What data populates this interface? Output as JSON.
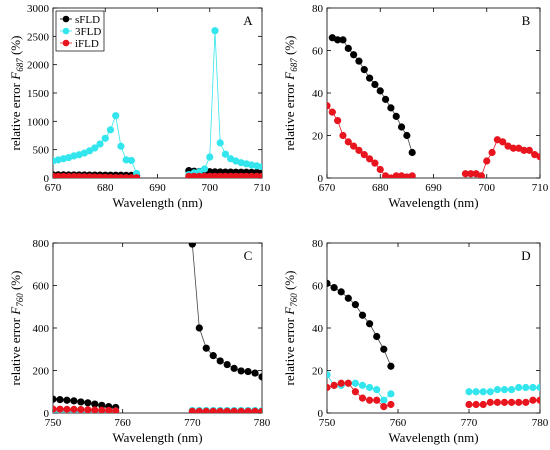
{
  "colors": {
    "sFLD": "#000000",
    "3FLD": "#33e6ee",
    "iFLD": "#e8141e"
  },
  "legend": [
    "sFLD",
    "3FLD",
    "iFLD"
  ],
  "chart_data": [
    {
      "type": "line",
      "panel": "A",
      "xlabel": "Wavelength (nm)",
      "ylabel_main": "relative error ",
      "ylabel_sym": "F",
      "ylabel_sub": "687",
      "ylabel_unit": " (%)",
      "xlim": [
        670,
        710
      ],
      "ylim": [
        0,
        3000
      ],
      "xticks": [
        670,
        680,
        690,
        700,
        710
      ],
      "yticks": [
        0,
        500,
        1000,
        1500,
        2000,
        2500,
        3000
      ],
      "legend_placement": "top-left",
      "series": [
        {
          "name": "sFLD",
          "x": [
            670,
            671,
            672,
            673,
            674,
            675,
            676,
            677,
            678,
            679,
            680,
            681,
            682,
            683,
            684,
            685,
            686
          ],
          "y": [
            55,
            55,
            55,
            54,
            54,
            53,
            53,
            52,
            52,
            51,
            50,
            50,
            49,
            48,
            47,
            46,
            45
          ]
        },
        {
          "name": "3FLD",
          "x": [
            670,
            671,
            672,
            673,
            674,
            675,
            676,
            677,
            678,
            679,
            680,
            681,
            682,
            683,
            684,
            685,
            686
          ],
          "y": [
            300,
            320,
            340,
            360,
            390,
            410,
            440,
            480,
            530,
            600,
            700,
            850,
            1100,
            560,
            320,
            310,
            80
          ]
        },
        {
          "name": "iFLD",
          "x": [
            670,
            671,
            672,
            673,
            674,
            675,
            676,
            677,
            678,
            679,
            680,
            681,
            682,
            683,
            684,
            685,
            686
          ],
          "y": [
            30,
            28,
            26,
            25,
            24,
            22,
            20,
            18,
            16,
            14,
            12,
            10,
            8,
            6,
            5,
            5,
            4
          ]
        },
        {
          "name": "sFLD",
          "x": [
            696,
            697,
            698,
            699,
            700,
            701,
            702,
            703,
            704,
            705,
            706,
            707,
            708,
            709,
            710
          ],
          "y": [
            130,
            120,
            115,
            110,
            110,
            108,
            106,
            105,
            104,
            103,
            102,
            101,
            100,
            98,
            96
          ]
        },
        {
          "name": "3FLD",
          "x": [
            696,
            697,
            698,
            699,
            700,
            701,
            702,
            703,
            704,
            705,
            706,
            707,
            708,
            709,
            710
          ],
          "y": [
            60,
            90,
            110,
            160,
            370,
            2600,
            620,
            420,
            340,
            300,
            270,
            250,
            230,
            215,
            200
          ]
        },
        {
          "name": "iFLD",
          "x": [
            696,
            697,
            698,
            699,
            700,
            701,
            702,
            703,
            704,
            705,
            706,
            707,
            708,
            709,
            710
          ],
          "y": [
            30,
            30,
            30,
            30,
            30,
            30,
            30,
            30,
            30,
            30,
            30,
            30,
            30,
            30,
            30
          ]
        }
      ]
    },
    {
      "type": "line",
      "panel": "B",
      "xlabel": "Wavelength (nm)",
      "ylabel_main": "relative error ",
      "ylabel_sym": "F",
      "ylabel_sub": "687",
      "ylabel_unit": " (%)",
      "xlim": [
        670,
        710
      ],
      "ylim": [
        0,
        80
      ],
      "xticks": [
        670,
        680,
        690,
        700,
        710
      ],
      "yticks": [
        0,
        20,
        40,
        60,
        80
      ],
      "series": [
        {
          "name": "sFLD",
          "x": [
            671,
            672,
            673,
            674,
            675,
            676,
            677,
            678,
            679,
            680,
            681,
            682,
            683,
            684,
            685,
            686
          ],
          "y": [
            66,
            65,
            65,
            61,
            58,
            55,
            51,
            47,
            44,
            41,
            37,
            33,
            29,
            24,
            20,
            12
          ]
        },
        {
          "name": "iFLD",
          "x": [
            670,
            671,
            672,
            673,
            674,
            675,
            676,
            677,
            678,
            679,
            680,
            681,
            682,
            683,
            684,
            685,
            686
          ],
          "y": [
            34,
            31,
            27,
            20,
            17,
            15,
            13,
            11,
            9,
            7,
            4,
            1,
            0,
            1,
            1,
            0.5,
            1
          ]
        },
        {
          "name": "iFLD",
          "x": [
            696,
            697,
            698,
            699,
            700,
            701,
            702,
            703,
            704,
            705,
            706,
            707,
            708,
            709,
            710
          ],
          "y": [
            2,
            2,
            2,
            1,
            8,
            12,
            18,
            17,
            15,
            14,
            14,
            13,
            13,
            11,
            10
          ]
        }
      ]
    },
    {
      "type": "line",
      "panel": "C",
      "xlabel": "Wavelength (nm)",
      "ylabel_main": "relative error ",
      "ylabel_sym": "F",
      "ylabel_sub": "760",
      "ylabel_unit": " (%)",
      "xlim": [
        750,
        780
      ],
      "ylim": [
        0,
        800
      ],
      "xticks": [
        750,
        760,
        770,
        780
      ],
      "yticks": [
        0,
        200,
        400,
        600,
        800
      ],
      "series": [
        {
          "name": "sFLD",
          "x": [
            750,
            751,
            752,
            753,
            754,
            755,
            756,
            757,
            758,
            759
          ],
          "y": [
            65,
            63,
            60,
            57,
            52,
            48,
            42,
            36,
            30,
            26
          ]
        },
        {
          "name": "3FLD",
          "x": [
            750,
            751,
            752,
            753,
            754,
            755,
            756,
            757,
            758,
            759
          ],
          "y": [
            12,
            12,
            12,
            12,
            11,
            11,
            11,
            10,
            10,
            10
          ]
        },
        {
          "name": "iFLD",
          "x": [
            750,
            751,
            752,
            753,
            754,
            755,
            756,
            757,
            758,
            759
          ],
          "y": [
            18,
            18,
            17,
            17,
            16,
            15,
            14,
            13,
            12,
            10
          ]
        },
        {
          "name": "sFLD",
          "x": [
            770,
            771,
            772,
            773,
            774,
            775,
            776,
            777,
            778,
            779,
            780
          ],
          "y": [
            795,
            400,
            305,
            270,
            245,
            228,
            210,
            198,
            195,
            188,
            170
          ]
        },
        {
          "name": "3FLD",
          "x": [
            770,
            771,
            772,
            773,
            774,
            775,
            776,
            777,
            778,
            779,
            780
          ],
          "y": [
            12,
            12,
            12,
            12,
            12,
            12,
            12,
            12,
            12,
            12,
            12
          ]
        },
        {
          "name": "iFLD",
          "x": [
            770,
            771,
            772,
            773,
            774,
            775,
            776,
            777,
            778,
            779,
            780
          ],
          "y": [
            8,
            8,
            8,
            8,
            8,
            8,
            8,
            8,
            8,
            8,
            8
          ]
        }
      ]
    },
    {
      "type": "line",
      "panel": "D",
      "xlabel": "Wavelength (nm)",
      "ylabel_main": "relative error ",
      "ylabel_sym": "F",
      "ylabel_sub": "760",
      "ylabel_unit": " (%)",
      "xlim": [
        750,
        780
      ],
      "ylim": [
        0,
        80
      ],
      "xticks": [
        750,
        760,
        770,
        780
      ],
      "yticks": [
        0,
        20,
        40,
        60,
        80
      ],
      "series": [
        {
          "name": "sFLD",
          "x": [
            750,
            751,
            752,
            753,
            754,
            755,
            756,
            757,
            758,
            759
          ],
          "y": [
            61,
            59,
            57,
            54,
            51,
            46,
            42,
            36,
            30,
            22
          ]
        },
        {
          "name": "3FLD",
          "x": [
            750,
            751,
            752,
            753,
            754,
            755,
            756,
            757,
            758,
            759
          ],
          "y": [
            18,
            13,
            13,
            14,
            14,
            13,
            12,
            11,
            6,
            9
          ]
        },
        {
          "name": "iFLD",
          "x": [
            750,
            751,
            752,
            753,
            754,
            755,
            756,
            757,
            758,
            759
          ],
          "y": [
            12,
            13,
            14,
            14,
            10,
            7,
            6,
            6,
            3,
            4
          ]
        },
        {
          "name": "3FLD",
          "x": [
            770,
            771,
            772,
            773,
            774,
            775,
            776,
            777,
            778,
            779,
            780
          ],
          "y": [
            10,
            10,
            10,
            10,
            11,
            11,
            11,
            12,
            12,
            12,
            12
          ]
        },
        {
          "name": "iFLD",
          "x": [
            770,
            771,
            772,
            773,
            774,
            775,
            776,
            777,
            778,
            779,
            780
          ],
          "y": [
            4,
            4,
            4,
            5,
            5,
            5,
            5,
            5,
            5,
            6,
            6
          ]
        }
      ]
    }
  ]
}
